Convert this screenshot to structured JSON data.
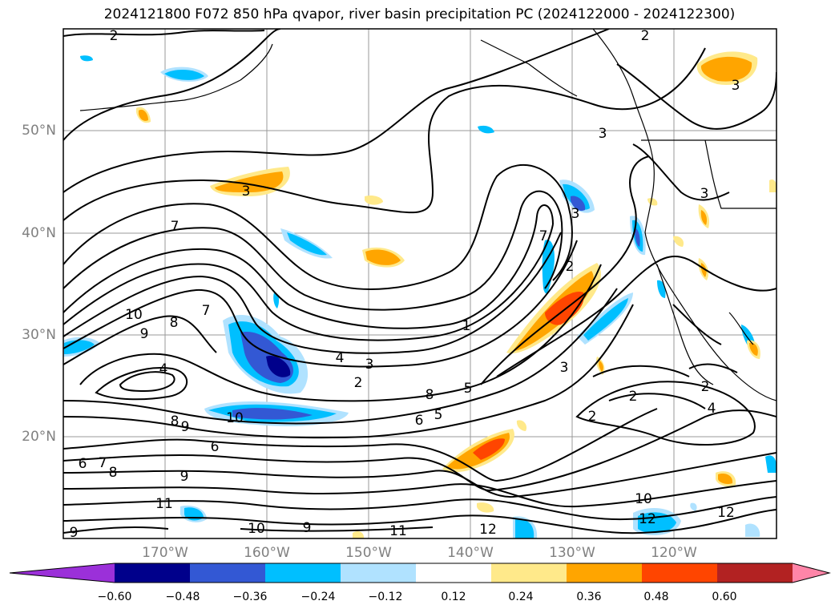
{
  "title": "2024121800 F072 850 hPa qvapor, river basin precipitation PC (2024122000 - 2024122300)",
  "map": {
    "lat_labels": [
      "50°N",
      "40°N",
      "30°N",
      "20°N"
    ],
    "lon_labels": [
      "170°W",
      "160°W",
      "150°W",
      "140°W",
      "130°W",
      "120°W"
    ],
    "lat_range": [
      10,
      60
    ],
    "lon_range": [
      -180,
      -110
    ],
    "contour_labels": [
      "2",
      "2",
      "3",
      "3",
      "7",
      "10",
      "9",
      "8",
      "7",
      "4",
      "4",
      "3",
      "2",
      "1",
      "5",
      "6",
      "5",
      "8",
      "7",
      "3",
      "3",
      "8",
      "2",
      "9",
      "10",
      "6",
      "6",
      "7",
      "8",
      "9",
      "11",
      "10",
      "9",
      "11",
      "12",
      "12",
      "12",
      "10",
      "2",
      "2",
      "2",
      "4",
      "9",
      "3",
      "3"
    ]
  },
  "colorbar": {
    "colors": [
      "#9b30d9",
      "#00008b",
      "#3358d4",
      "#00bfff",
      "#b0e2ff",
      "#ffffff",
      "#ffe98a",
      "#ffa500",
      "#ff4500",
      "#b22222",
      "#ff85a8"
    ],
    "tick_labels": [
      "−0.60",
      "−0.48",
      "−0.36",
      "−0.24",
      "−0.12",
      "0.12",
      "0.24",
      "0.36",
      "0.48",
      "0.60"
    ]
  }
}
